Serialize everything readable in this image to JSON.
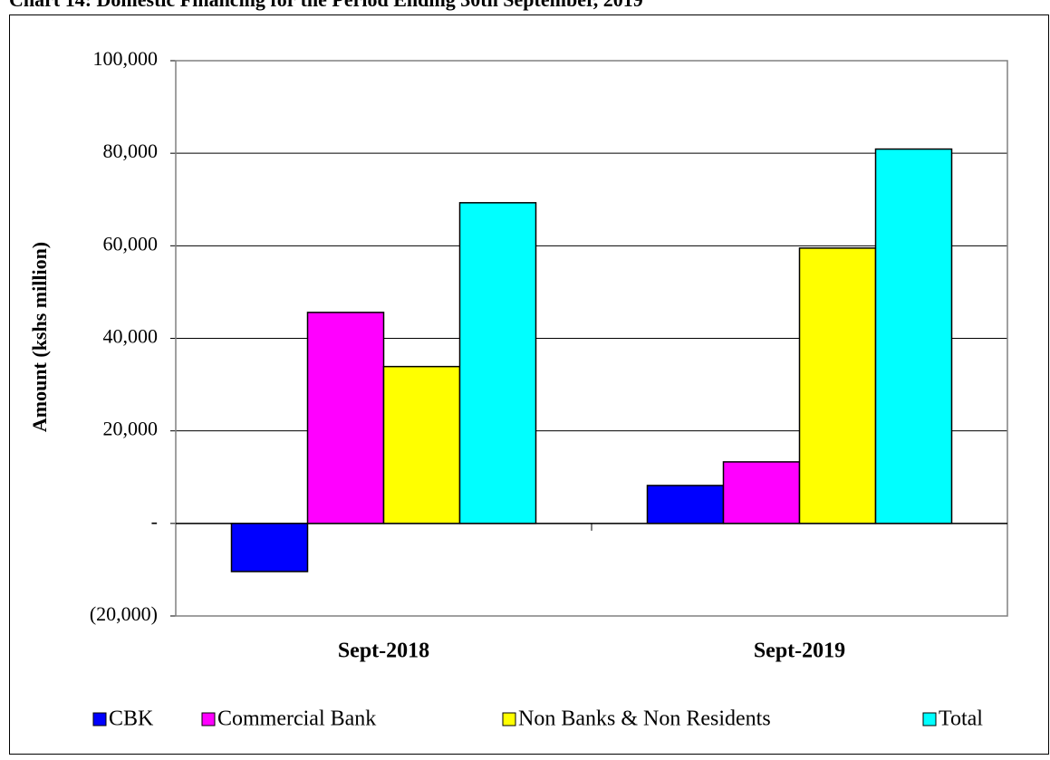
{
  "chart_data": {
    "type": "bar",
    "title": "Chart 14: Domestic Financing for the Period Ending 30th September, 2019",
    "y_label": "Amount (kshs million)",
    "categories": [
      "Sept-2018",
      "Sept-2019"
    ],
    "series": [
      {
        "name": "CBK",
        "color": "#0000ff",
        "values": [
          -10400,
          8200
        ]
      },
      {
        "name": "Commercial Bank",
        "color": "#ff00ff",
        "values": [
          45600,
          13300
        ]
      },
      {
        "name": "Non Banks & Non Residents",
        "color": "#ffff00",
        "values": [
          33900,
          59500
        ]
      },
      {
        "name": "Total",
        "color": "#00ffff",
        "values": [
          69300,
          80900
        ]
      }
    ],
    "ylim": [
      -20000,
      100000
    ],
    "yticks": [
      {
        "value": -20000,
        "label": "(20,000)"
      },
      {
        "value": 0,
        "label": "-"
      },
      {
        "value": 20000,
        "label": "20,000"
      },
      {
        "value": 40000,
        "label": "40,000"
      },
      {
        "value": 60000,
        "label": "60,000"
      },
      {
        "value": 80000,
        "label": "80,000"
      },
      {
        "value": 100000,
        "label": "100,000"
      }
    ],
    "grid": true,
    "legend": "bottom"
  }
}
